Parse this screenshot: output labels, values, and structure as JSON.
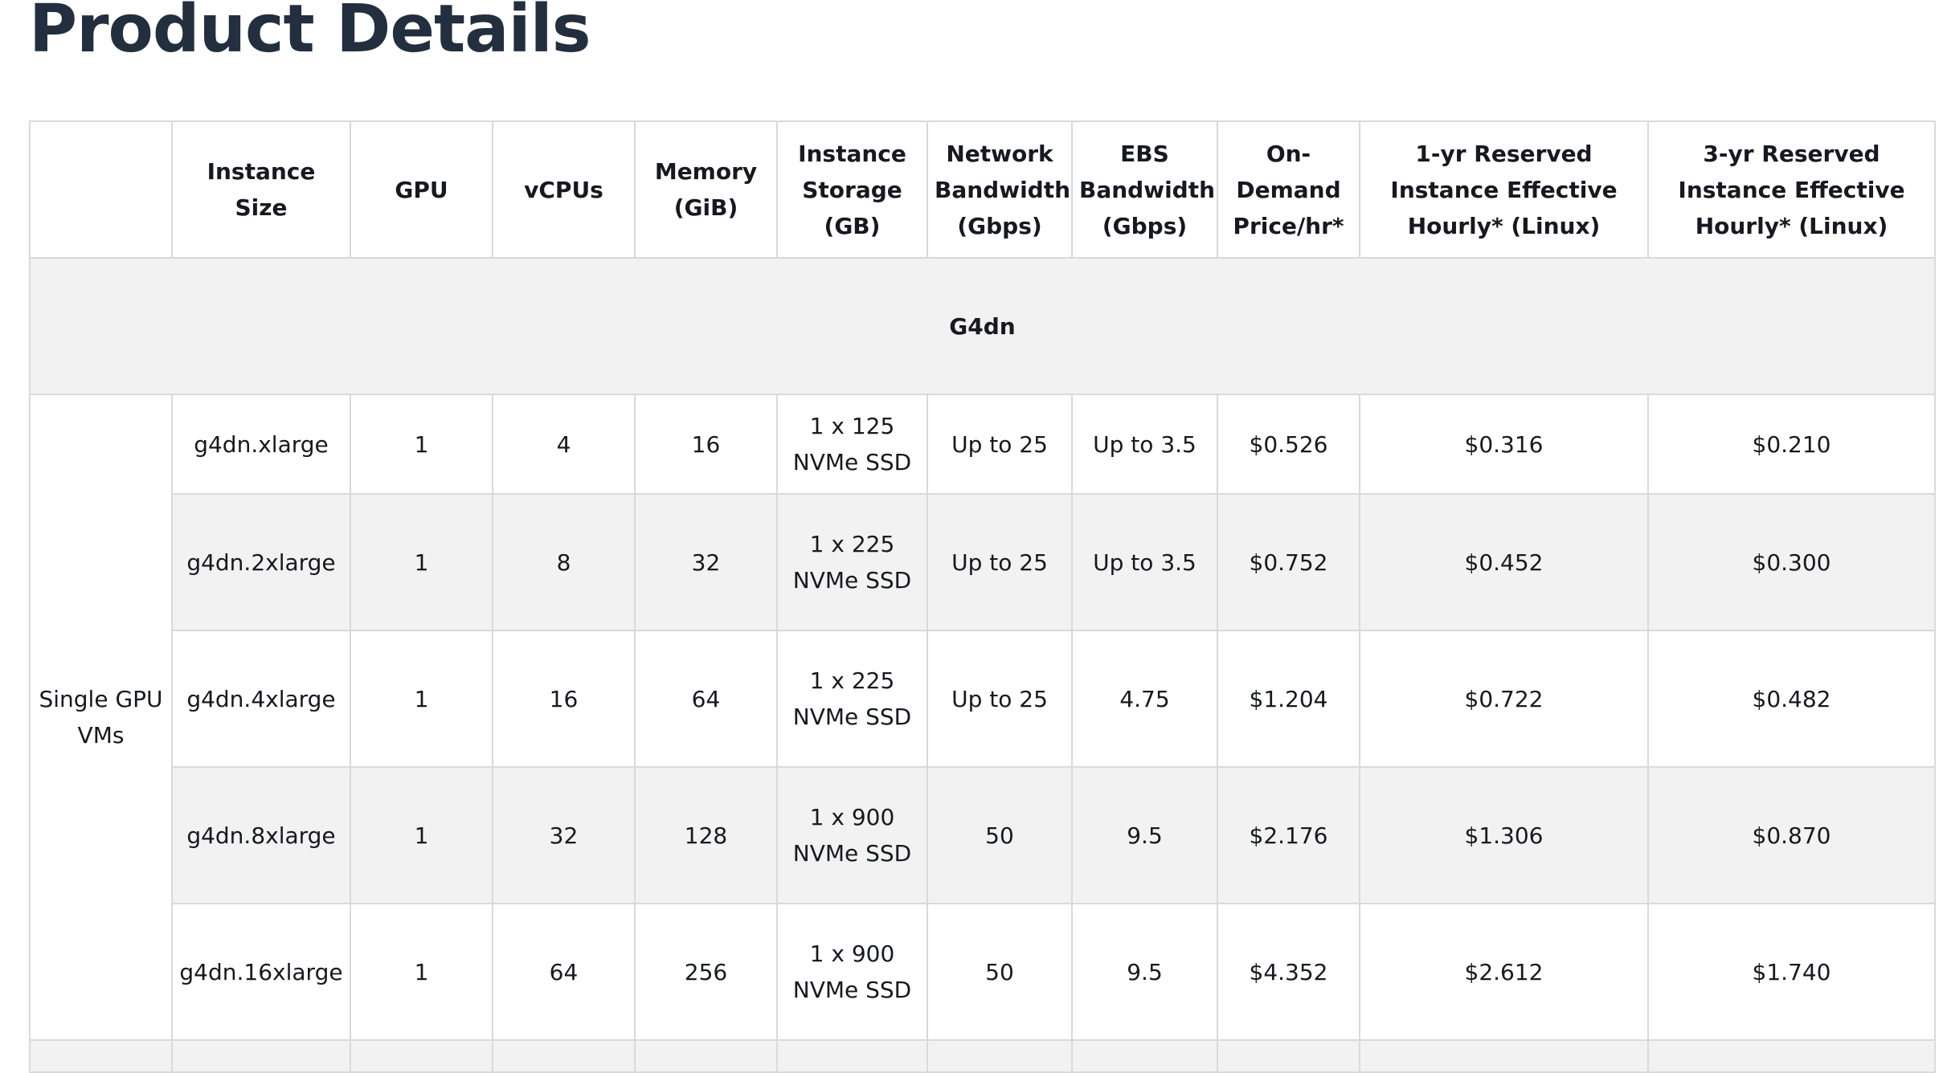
{
  "page": {
    "title": "Product Details"
  },
  "table": {
    "headers": {
      "group": "",
      "instance_size": "Instance Size",
      "gpu": "GPU",
      "vcpus": "vCPUs",
      "memory": "Memory (GiB)",
      "storage": "Instance Storage (GB)",
      "network": "Network Bandwidth (Gbps)",
      "ebs": "EBS Bandwidth (Gbps)",
      "ondemand": "On-Demand Price/hr*",
      "ri1": "1-yr Reserved Instance Effective Hourly* (Linux)",
      "ri3": "3-yr Reserved Instance Effective Hourly* (Linux)"
    },
    "family": "G4dn",
    "group_label": "Single GPU VMs",
    "rows": [
      {
        "size": "g4dn.xlarge",
        "gpu": "1",
        "vcpus": "4",
        "memory": "16",
        "storage": "1 x 125 NVMe SSD",
        "network": "Up to 25",
        "ebs": "Up to 3.5",
        "ondemand": "$0.526",
        "ri1": "$0.316",
        "ri3": "$0.210"
      },
      {
        "size": "g4dn.2xlarge",
        "gpu": "1",
        "vcpus": "8",
        "memory": "32",
        "storage": "1 x 225 NVMe SSD",
        "network": "Up to 25",
        "ebs": "Up to 3.5",
        "ondemand": "$0.752",
        "ri1": "$0.452",
        "ri3": "$0.300"
      },
      {
        "size": "g4dn.4xlarge",
        "gpu": "1",
        "vcpus": "16",
        "memory": "64",
        "storage": "1 x 225 NVMe SSD",
        "network": "Up to 25",
        "ebs": "4.75",
        "ondemand": "$1.204",
        "ri1": "$0.722",
        "ri3": "$0.482"
      },
      {
        "size": "g4dn.8xlarge",
        "gpu": "1",
        "vcpus": "32",
        "memory": "128",
        "storage": "1 x 900 NVMe SSD",
        "network": "50",
        "ebs": "9.5",
        "ondemand": "$2.176",
        "ri1": "$1.306",
        "ri3": "$0.870"
      },
      {
        "size": "g4dn.16xlarge",
        "gpu": "1",
        "vcpus": "64",
        "memory": "256",
        "storage": "1 x 900 NVMe SSD",
        "network": "50",
        "ebs": "9.5",
        "ondemand": "$4.352",
        "ri1": "$2.612",
        "ri3": "$1.740"
      }
    ]
  }
}
